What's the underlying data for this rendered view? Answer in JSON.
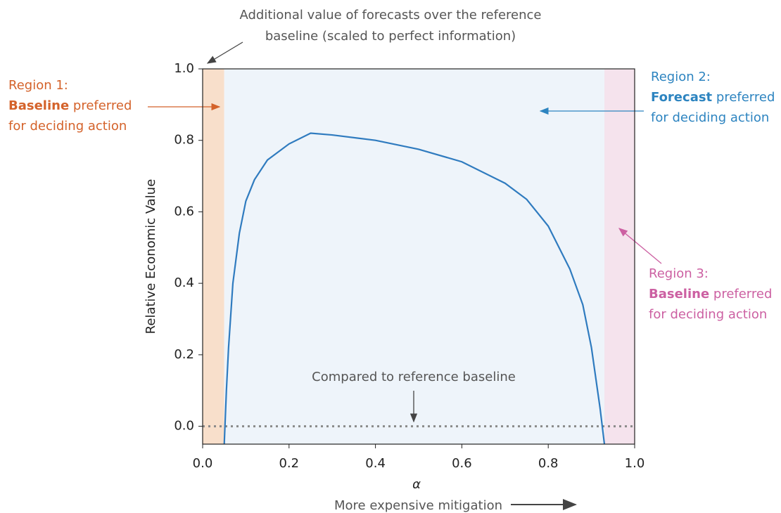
{
  "chart_data": {
    "type": "line",
    "annotation": [
      "Additional value of forecasts over the reference",
      "baseline (scaled to perfect information)"
    ],
    "ylabel": "Relative Economic Value",
    "xlabel": "α",
    "xlabel_note": "More expensive mitigation",
    "baseline_note": "Compared to reference baseline",
    "baseline": 0,
    "baseline_color": "#8a8a8a",
    "xlim": [
      0,
      1
    ],
    "ylim": [
      -0.05,
      1.0
    ],
    "xticks": [
      {
        "value": 0,
        "label": "0.0"
      },
      0.2,
      0.4,
      0.6,
      0.8,
      {
        "value": 1,
        "label": "1.0"
      }
    ],
    "yticks": [
      {
        "value": 0,
        "label": "0.0"
      },
      0.2,
      0.4,
      0.6,
      0.8,
      {
        "value": 1,
        "label": "1.0"
      }
    ],
    "regions": [
      {
        "start": 0,
        "end": 0.05,
        "color": "#f8dfcb",
        "text_color": "#d4622a",
        "title": "Region 1:",
        "emphasis": "Baseline",
        "text": "preferred",
        "text2": "for deciding action"
      },
      {
        "start": 0.05,
        "end": 0.93,
        "color": "#eef4fa",
        "text_color": "#2d84c0",
        "title": "Region 2:",
        "emphasis": "Forecast",
        "text": "preferred",
        "text2": "for deciding action"
      },
      {
        "start": 0.93,
        "end": 1,
        "color": "#f5e3ed",
        "text_color": "#cc60a2",
        "title": "Region 3:",
        "emphasis": "Baseline",
        "text": "preferred",
        "text2": "for deciding action"
      }
    ],
    "series": [
      {
        "color": "#2f7bbf",
        "x": [
          0.05,
          0.055,
          0.06,
          0.07,
          0.085,
          0.1,
          0.12,
          0.15,
          0.2,
          0.25,
          0.3,
          0.4,
          0.5,
          0.6,
          0.7,
          0.75,
          0.8,
          0.85,
          0.88,
          0.9,
          0.92,
          0.93
        ],
        "values": [
          -0.05,
          0.1,
          0.22,
          0.4,
          0.54,
          0.63,
          0.69,
          0.745,
          0.79,
          0.82,
          0.815,
          0.8,
          0.775,
          0.74,
          0.68,
          0.635,
          0.56,
          0.44,
          0.34,
          0.22,
          0.05,
          -0.05
        ]
      }
    ]
  }
}
